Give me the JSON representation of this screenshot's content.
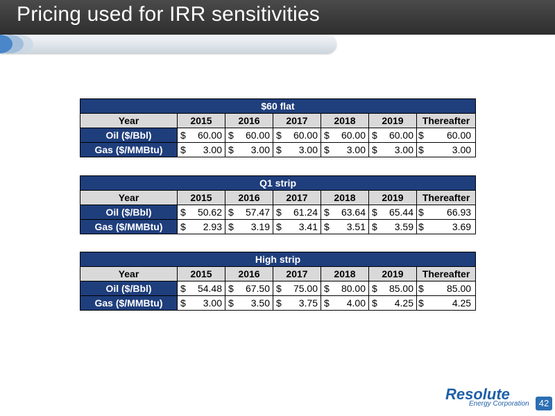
{
  "header": {
    "title": "Pricing used for IRR sensitivities"
  },
  "tables": [
    {
      "title": "$60 flat",
      "year_label": "Year",
      "years": [
        "2015",
        "2016",
        "2017",
        "2018",
        "2019",
        "Thereafter"
      ],
      "rows": [
        {
          "label": "Oil ($/Bbl)",
          "values": [
            "60.00",
            "60.00",
            "60.00",
            "60.00",
            "60.00",
            "60.00"
          ]
        },
        {
          "label": "Gas ($/MMBtu)",
          "values": [
            "3.00",
            "3.00",
            "3.00",
            "3.00",
            "3.00",
            "3.00"
          ]
        }
      ]
    },
    {
      "title": "Q1 strip",
      "year_label": "Year",
      "years": [
        "2015",
        "2016",
        "2017",
        "2018",
        "2019",
        "Thereafter"
      ],
      "rows": [
        {
          "label": "Oil ($/Bbl)",
          "values": [
            "50.62",
            "57.47",
            "61.24",
            "63.64",
            "65.44",
            "66.93"
          ]
        },
        {
          "label": "Gas ($/MMBtu)",
          "values": [
            "2.93",
            "3.19",
            "3.41",
            "3.51",
            "3.59",
            "3.69"
          ]
        }
      ]
    },
    {
      "title": "High strip",
      "year_label": "Year",
      "years": [
        "2015",
        "2016",
        "2017",
        "2018",
        "2019",
        "Thereafter"
      ],
      "rows": [
        {
          "label": "Oil ($/Bbl)",
          "values": [
            "54.48",
            "67.50",
            "75.00",
            "80.00",
            "85.00",
            "85.00"
          ]
        },
        {
          "label": "Gas ($/MMBtu)",
          "values": [
            "3.00",
            "3.50",
            "3.75",
            "4.00",
            "4.25",
            "4.25"
          ]
        }
      ]
    }
  ],
  "currency_symbol": "$",
  "footer": {
    "logo_name": "Resolute",
    "logo_subtitle": "Energy Corporation",
    "page_number": "42"
  },
  "colors": {
    "table_header_blue": "#1f3e7c",
    "year_row_gray": "#d9d9d9",
    "title_bar_dark": "#3a3a3a",
    "logo_blue": "#1f5fa8"
  }
}
